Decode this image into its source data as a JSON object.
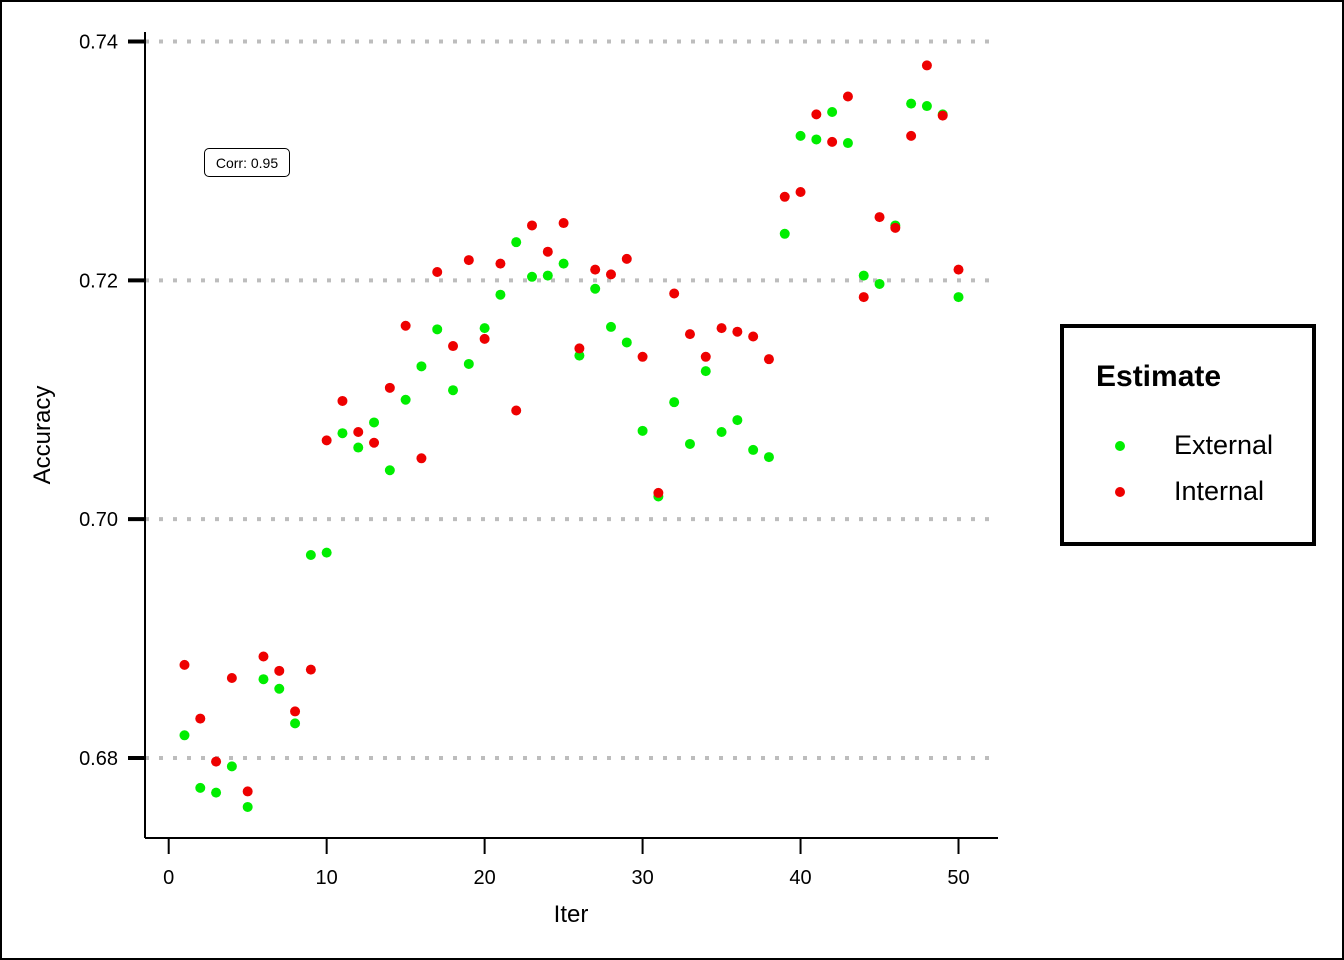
{
  "chart_data": {
    "type": "scatter",
    "xlabel": "Iter",
    "ylabel": "Accuracy",
    "xlim": [
      -1.5,
      52.5
    ],
    "ylim": [
      0.6733,
      0.7408
    ],
    "x_ticks": [
      0,
      10,
      20,
      30,
      40,
      50
    ],
    "x_tick_labels": [
      "0",
      "10",
      "20",
      "30",
      "40",
      "50"
    ],
    "y_ticks": [
      0.68,
      0.7,
      0.72,
      0.74
    ],
    "y_tick_labels": [
      "0.68",
      "0.70",
      "0.72",
      "0.74"
    ],
    "grid": "horizontal dotted",
    "legend": {
      "title": "Estimate",
      "placement": "right",
      "entries": [
        "External",
        "Internal"
      ]
    },
    "annotation": "Corr: 0.95",
    "series": [
      {
        "name": "External",
        "color": "#00ee00",
        "x": [
          1,
          2,
          3,
          4,
          5,
          6,
          7,
          8,
          9,
          10,
          11,
          12,
          13,
          14,
          15,
          16,
          17,
          18,
          19,
          20,
          21,
          22,
          23,
          24,
          25,
          26,
          27,
          28,
          29,
          30,
          31,
          32,
          33,
          34,
          35,
          36,
          37,
          38,
          39,
          40,
          41,
          42,
          43,
          44,
          45,
          46,
          47,
          48,
          49,
          50
        ],
        "y": [
          0.6819,
          0.6775,
          0.6771,
          0.6793,
          0.6759,
          0.6866,
          0.6858,
          0.6829,
          0.697,
          0.6972,
          0.7072,
          0.706,
          0.7081,
          0.7041,
          0.71,
          0.7128,
          0.7159,
          0.7108,
          0.713,
          0.716,
          0.7188,
          0.7232,
          0.7203,
          0.7204,
          0.7214,
          0.7137,
          0.7193,
          0.7161,
          0.7148,
          0.7074,
          0.7019,
          0.7098,
          0.7063,
          0.7124,
          0.7073,
          0.7083,
          0.7058,
          0.7052,
          0.7239,
          0.7321,
          0.7318,
          0.7341,
          0.7315,
          0.7204,
          0.7197,
          0.7246,
          0.7348,
          0.7346,
          0.7339,
          0.7186
        ]
      },
      {
        "name": "Internal",
        "color": "#ee0000",
        "x": [
          1,
          2,
          3,
          4,
          5,
          6,
          7,
          8,
          9,
          10,
          11,
          12,
          13,
          14,
          15,
          16,
          17,
          18,
          19,
          20,
          21,
          22,
          23,
          24,
          25,
          26,
          27,
          28,
          29,
          30,
          31,
          32,
          33,
          34,
          35,
          36,
          37,
          38,
          39,
          40,
          41,
          42,
          43,
          44,
          45,
          46,
          47,
          48,
          49,
          50
        ],
        "y": [
          0.6878,
          0.6833,
          0.6797,
          0.6867,
          0.6772,
          0.6885,
          0.6873,
          0.6839,
          0.6874,
          0.7066,
          0.7099,
          0.7073,
          0.7064,
          0.711,
          0.7162,
          0.7051,
          0.7207,
          0.7145,
          0.7217,
          0.7151,
          0.7214,
          0.7091,
          0.7246,
          0.7224,
          0.7248,
          0.7143,
          0.7209,
          0.7205,
          0.7218,
          0.7136,
          0.7022,
          0.7189,
          0.7155,
          0.7136,
          0.716,
          0.7157,
          0.7153,
          0.7134,
          0.727,
          0.7274,
          0.7339,
          0.7316,
          0.7354,
          0.7186,
          0.7253,
          0.7244,
          0.7321,
          0.738,
          0.7338,
          0.7209
        ]
      }
    ]
  }
}
